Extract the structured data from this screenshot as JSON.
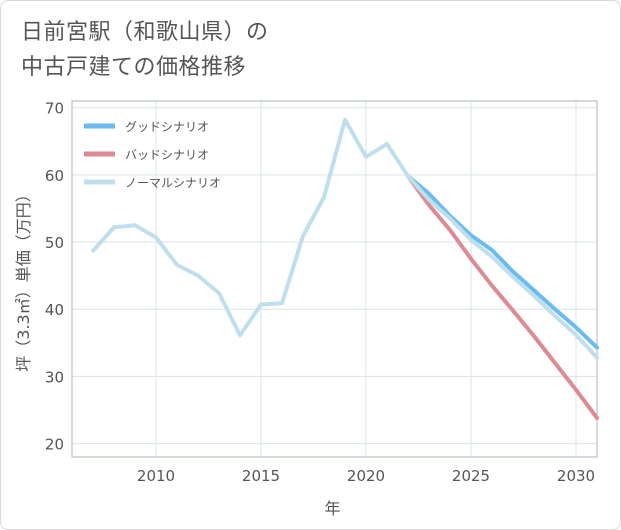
{
  "title_line1": "日前宮駅（和歌山県）の",
  "title_line2": "中古戸建ての価格推移",
  "chart_data": {
    "type": "line",
    "xlabel": "年",
    "ylabel": "坪（3.3㎡）単価（万円）",
    "xlim": [
      2006,
      2031
    ],
    "ylim": [
      18,
      71
    ],
    "x_ticks": [
      2010,
      2015,
      2020,
      2025,
      2030
    ],
    "y_ticks": [
      20,
      30,
      40,
      50,
      60,
      70
    ],
    "legend_position": "top-left",
    "series": [
      {
        "name": "グッドシナリオ",
        "color": "#6bbcee",
        "x": [
          2022,
          2023,
          2024,
          2025,
          2026,
          2027,
          2028,
          2029,
          2030,
          2031
        ],
        "y": [
          59.8,
          57.2,
          53.9,
          51.0,
          48.8,
          45.6,
          42.8,
          40.0,
          37.3,
          34.3
        ]
      },
      {
        "name": "バッドシナリオ",
        "color": "#de8a92",
        "x": [
          2022,
          2023,
          2024,
          2025,
          2026,
          2027,
          2028,
          2029,
          2030,
          2031
        ],
        "y": [
          59.8,
          55.5,
          51.8,
          47.5,
          43.5,
          39.8,
          36.0,
          32.0,
          28.0,
          23.8
        ]
      },
      {
        "name": "ノーマルシナリオ",
        "color": "#c0dfec",
        "x": [
          2007,
          2008,
          2009,
          2010,
          2011,
          2012,
          2013,
          2014,
          2015,
          2016,
          2017,
          2018,
          2019,
          2020,
          2021,
          2022,
          2023,
          2024,
          2025,
          2026,
          2027,
          2028,
          2029,
          2030,
          2031
        ],
        "y": [
          48.7,
          52.2,
          52.5,
          50.7,
          46.6,
          45.0,
          42.4,
          36.1,
          40.7,
          40.9,
          50.9,
          56.7,
          68.2,
          62.7,
          64.6,
          59.8,
          56.3,
          53.5,
          50.3,
          47.8,
          44.8,
          42.0,
          39.0,
          36.2,
          32.8
        ]
      }
    ]
  }
}
